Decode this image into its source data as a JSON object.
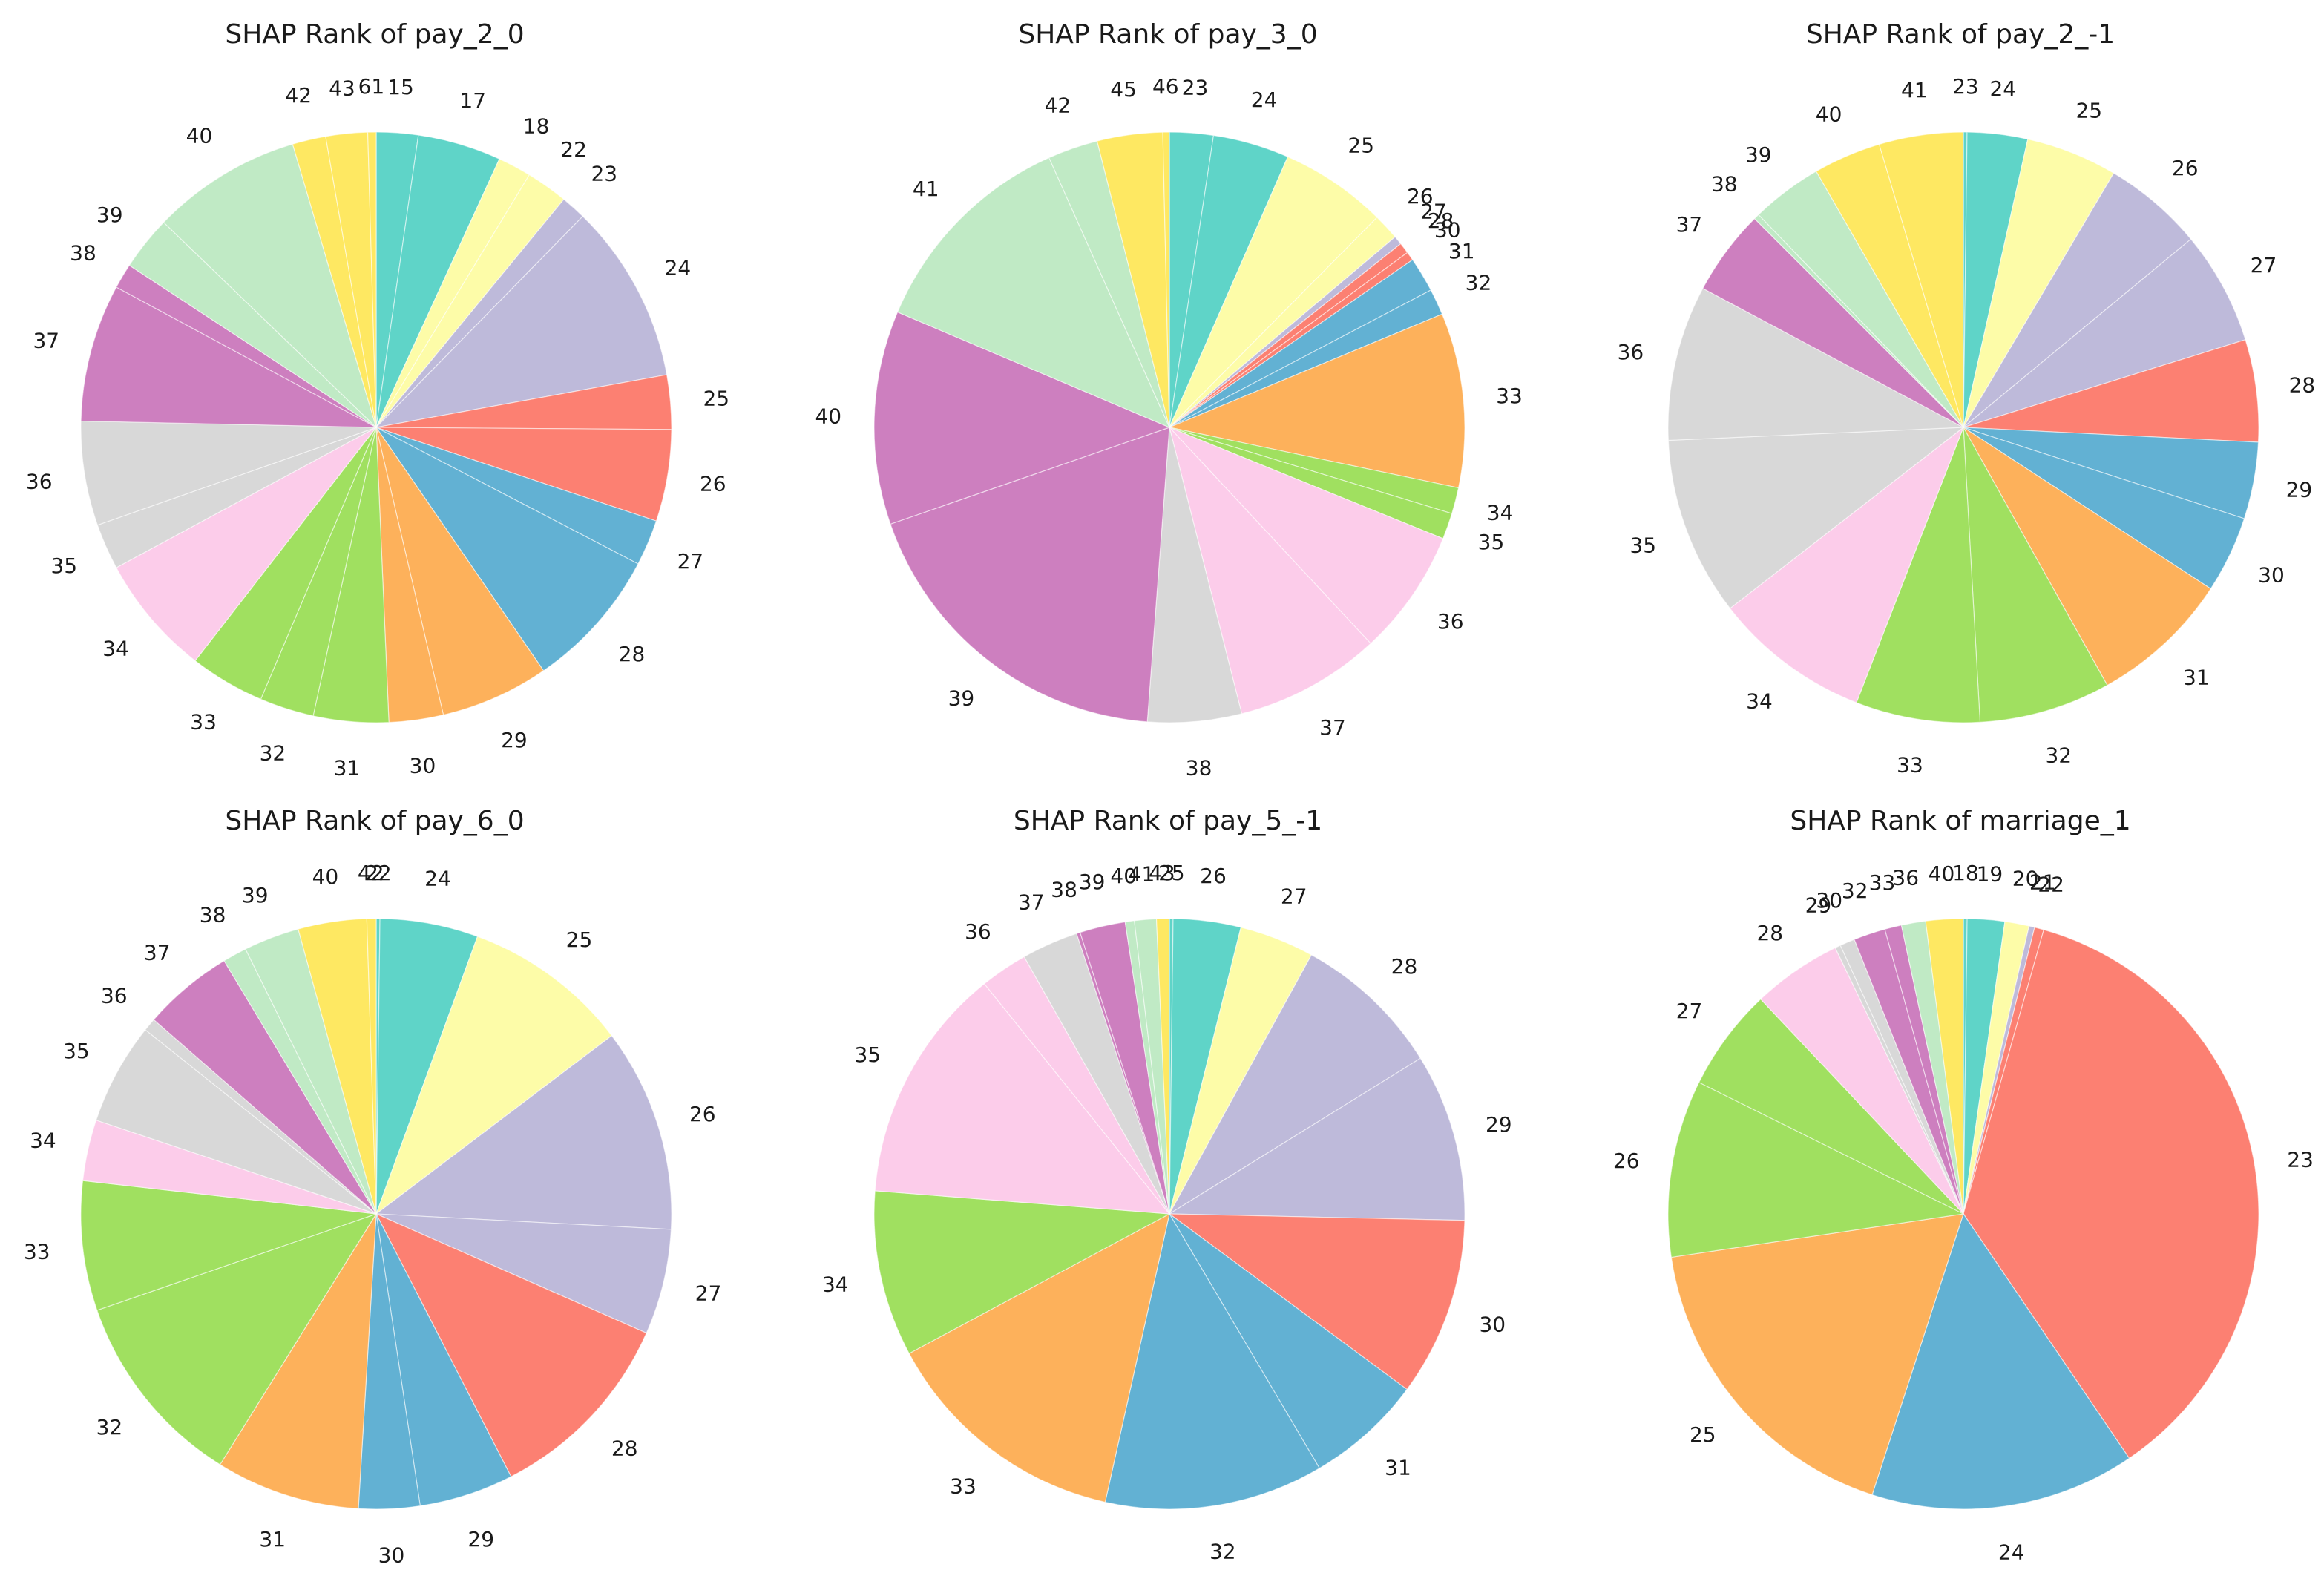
{
  "palette": [
    "#5fd4c8",
    "#fdfca8",
    "#bebada",
    "#fc8072",
    "#62b1d3",
    "#fdb15b",
    "#a0e060",
    "#fcccea",
    "#d8d8d8",
    "#cd7fbf",
    "#c0eac5",
    "#fee862"
  ],
  "chart_data": [
    {
      "type": "pie",
      "title": "SHAP Rank of pay_2_0",
      "start": "12 o'clock",
      "direction": "clockwise",
      "labels": [
        "15",
        "17",
        "18",
        "22",
        "23",
        "24",
        "25",
        "26",
        "27",
        "28",
        "29",
        "30",
        "31",
        "32",
        "33",
        "34",
        "35",
        "36",
        "37",
        "38",
        "39",
        "40",
        "42",
        "43",
        "61"
      ],
      "values": [
        1.0,
        2.0,
        0.8,
        1.0,
        0.6,
        4.3,
        1.3,
        2.2,
        1.1,
        3.4,
        2.6,
        1.3,
        1.8,
        1.3,
        1.8,
        2.9,
        1.1,
        2.5,
        3.3,
        0.6,
        1.3,
        3.6,
        0.8,
        1.0,
        0.2
      ],
      "colors": [
        "#5fd4c8",
        "#5fd4c8",
        "#fdfca8",
        "#fdfca8",
        "#bebada",
        "#bebada",
        "#fc8072",
        "#fc8072",
        "#62b1d3",
        "#62b1d3",
        "#fdb15b",
        "#fdb15b",
        "#a0e060",
        "#a0e060",
        "#a0e060",
        "#fcccea",
        "#d8d8d8",
        "#d8d8d8",
        "#cd7fbf",
        "#cd7fbf",
        "#c0eac5",
        "#c0eac5",
        "#fee862",
        "#fee862",
        "#fee862"
      ]
    },
    {
      "type": "pie",
      "title": "SHAP Rank of pay_3_0",
      "start": "12 o'clock",
      "direction": "clockwise",
      "labels": [
        "23",
        "24",
        "25",
        "26",
        "27",
        "28",
        "30",
        "31",
        "32",
        "33",
        "34",
        "35",
        "36",
        "37",
        "38",
        "39",
        "40",
        "41",
        "42",
        "45",
        "46"
      ],
      "values": [
        2.0,
        3.5,
        4.9,
        1.2,
        0.4,
        0.5,
        0.4,
        1.6,
        1.2,
        8.0,
        1.2,
        1.2,
        5.8,
        6.7,
        4.3,
        15.5,
        9.8,
        10.0,
        2.3,
        3.0,
        0.3
      ],
      "colors": [
        "#5fd4c8",
        "#5fd4c8",
        "#fdfca8",
        "#fdfca8",
        "#bebada",
        "#fc8072",
        "#fc8072",
        "#62b1d3",
        "#62b1d3",
        "#fdb15b",
        "#a0e060",
        "#a0e060",
        "#fcccea",
        "#fcccea",
        "#d8d8d8",
        "#cd7fbf",
        "#cd7fbf",
        "#c0eac5",
        "#c0eac5",
        "#fee862",
        "#fee862"
      ]
    },
    {
      "type": "pie",
      "title": "SHAP Rank of pay_2_-1",
      "start": "12 o'clock",
      "direction": "clockwise",
      "labels": [
        "23",
        "24",
        "25",
        "26",
        "27",
        "28",
        "29",
        "30",
        "31",
        "32",
        "33",
        "34",
        "35",
        "36",
        "37",
        "38",
        "39",
        "40",
        "41"
      ],
      "values": [
        0.2,
        3.3,
        5.0,
        5.5,
        6.2,
        5.6,
        4.2,
        4.2,
        7.7,
        7.2,
        6.8,
        8.6,
        9.8,
        8.5,
        4.7,
        0.3,
        3.9,
        3.7,
        4.6
      ],
      "colors": [
        "#5fd4c8",
        "#5fd4c8",
        "#fdfca8",
        "#bebada",
        "#bebada",
        "#fc8072",
        "#62b1d3",
        "#62b1d3",
        "#fdb15b",
        "#a0e060",
        "#a0e060",
        "#fcccea",
        "#d8d8d8",
        "#d8d8d8",
        "#cd7fbf",
        "#c0eac5",
        "#c0eac5",
        "#fee862",
        "#fee862"
      ]
    },
    {
      "type": "pie",
      "title": "SHAP Rank of pay_6_0",
      "start": "12 o'clock",
      "direction": "clockwise",
      "labels": [
        "22",
        "24",
        "25",
        "26",
        "27",
        "28",
        "29",
        "30",
        "31",
        "32",
        "33",
        "34",
        "35",
        "36",
        "37",
        "38",
        "39",
        "40",
        "42"
      ],
      "values": [
        0.2,
        5.3,
        9.0,
        11.0,
        5.7,
        10.7,
        5.1,
        3.3,
        7.8,
        10.7,
        7.0,
        3.3,
        5.5,
        0.7,
        4.9,
        1.3,
        3.0,
        3.7,
        0.5
      ],
      "colors": [
        "#5fd4c8",
        "#5fd4c8",
        "#fdfca8",
        "#bebada",
        "#bebada",
        "#fc8072",
        "#62b1d3",
        "#62b1d3",
        "#fdb15b",
        "#a0e060",
        "#a0e060",
        "#fcccea",
        "#d8d8d8",
        "#d8d8d8",
        "#cd7fbf",
        "#c0eac5",
        "#c0eac5",
        "#fee862",
        "#fee862"
      ]
    },
    {
      "type": "pie",
      "title": "SHAP Rank of pay_5_-1",
      "start": "12 o'clock",
      "direction": "clockwise",
      "labels": [
        "25",
        "26",
        "27",
        "28",
        "29",
        "30",
        "31",
        "32",
        "33",
        "34",
        "35",
        "36",
        "37",
        "38",
        "39",
        "40",
        "41",
        "43"
      ],
      "values": [
        0.2,
        3.7,
        4.1,
        8.2,
        9.2,
        9.8,
        6.4,
        12.0,
        13.7,
        9.1,
        13.0,
        2.6,
        3.1,
        0.2,
        2.5,
        0.5,
        1.2,
        0.7
      ],
      "colors": [
        "#5fd4c8",
        "#5fd4c8",
        "#fdfca8",
        "#bebada",
        "#bebada",
        "#fc8072",
        "#62b1d3",
        "#62b1d3",
        "#fdb15b",
        "#a0e060",
        "#fcccea",
        "#fcccea",
        "#d8d8d8",
        "#cd7fbf",
        "#cd7fbf",
        "#c0eac5",
        "#c0eac5",
        "#fee862"
      ]
    },
    {
      "type": "pie",
      "title": "SHAP Rank of marriage_1",
      "start": "12 o'clock",
      "direction": "clockwise",
      "labels": [
        "18",
        "19",
        "20",
        "21",
        "22",
        "23",
        "24",
        "25",
        "26",
        "27",
        "28",
        "29",
        "30",
        "32",
        "33",
        "36",
        "40"
      ],
      "values": [
        0.2,
        2.0,
        1.3,
        0.3,
        0.5,
        35.4,
        14.2,
        17.3,
        9.5,
        5.5,
        4.8,
        0.3,
        0.8,
        1.7,
        0.9,
        1.3,
        2.0
      ],
      "colors": [
        "#5fd4c8",
        "#5fd4c8",
        "#fdfca8",
        "#bebada",
        "#fc8072",
        "#fc8072",
        "#62b1d3",
        "#fdb15b",
        "#a0e060",
        "#a0e060",
        "#fcccea",
        "#d8d8d8",
        "#d8d8d8",
        "#cd7fbf",
        "#cd7fbf",
        "#c0eac5",
        "#fee862"
      ]
    }
  ]
}
